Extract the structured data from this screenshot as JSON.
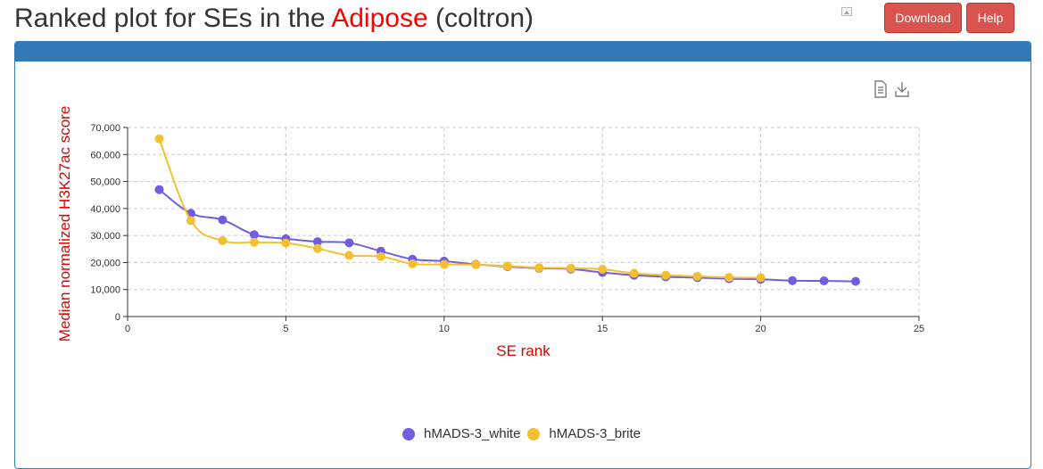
{
  "page": {
    "title_prefix": "Ranked plot for SEs in the ",
    "title_accent": "Adipose",
    "title_suffix": " (coltron)",
    "download_label": "Download",
    "help_label": "Help"
  },
  "colors": {
    "accent": "#ff0000",
    "button": "#d9534f",
    "panel": "#337ab7",
    "series_white": "#6f5fe0",
    "series_brite": "#f5c030"
  },
  "icons": [
    "data-view-icon",
    "save-image-icon"
  ],
  "chart_data": {
    "type": "line",
    "xlabel": "SE rank",
    "ylabel": "Median normalized H3K27ac score",
    "xlim": [
      0,
      25
    ],
    "ylim": [
      0,
      70000
    ],
    "xticks": [
      0,
      5,
      10,
      15,
      20,
      25
    ],
    "yticks": [
      0,
      10000,
      20000,
      30000,
      40000,
      50000,
      60000,
      70000
    ],
    "ytick_labels": [
      "0",
      "10,000",
      "20,000",
      "30,000",
      "40,000",
      "50,000",
      "60,000",
      "70,000"
    ],
    "grid": true,
    "legend_position": "bottom-center",
    "series": [
      {
        "name": "hMADS-3_white",
        "color": "#6f5fe0",
        "x": [
          1,
          2,
          3,
          4,
          5,
          6,
          7,
          8,
          9,
          10,
          11,
          12,
          13,
          14,
          15,
          16,
          17,
          18,
          19,
          20,
          21,
          22,
          23
        ],
        "y": [
          47000,
          38200,
          35800,
          30300,
          28800,
          27700,
          27300,
          24200,
          21200,
          20500,
          19300,
          18500,
          17900,
          17600,
          16300,
          15300,
          14700,
          14400,
          14000,
          13800,
          13300,
          13200,
          13000
        ]
      },
      {
        "name": "hMADS-3_brite",
        "color": "#f5c030",
        "x": [
          1,
          2,
          3,
          4,
          5,
          6,
          7,
          8,
          9,
          10,
          11,
          12,
          13,
          14,
          15,
          16,
          17,
          18,
          19,
          20
        ],
        "y": [
          65800,
          35500,
          28100,
          27500,
          27200,
          25200,
          22600,
          22200,
          19500,
          19300,
          19200,
          18700,
          18100,
          17900,
          17500,
          16000,
          15300,
          14900,
          14500,
          14400
        ]
      }
    ]
  }
}
